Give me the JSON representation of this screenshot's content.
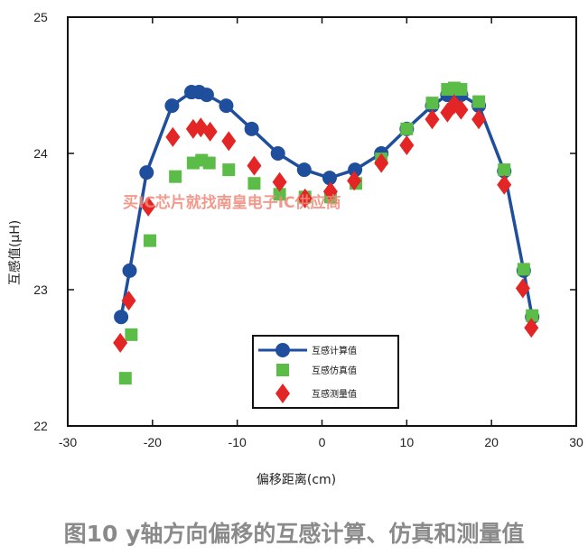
{
  "chart_data": {
    "type": "line",
    "xlabel": "偏移距离(cm)",
    "ylabel": "互感值(μH)",
    "xlim": [
      -30,
      30
    ],
    "ylim": [
      22,
      25
    ],
    "xticks": [
      -30,
      -20,
      -10,
      0,
      10,
      20,
      30
    ],
    "yticks": [
      22,
      23,
      24,
      25
    ],
    "grid": false,
    "legend_position": "bottom-center",
    "series": [
      {
        "name": "互感计算值",
        "style": "line-circle",
        "color": "#1f4e9c",
        "x": [
          -23.7,
          -22.7,
          -20.7,
          -17.7,
          -15.4,
          -14.5,
          -13.6,
          -11.3,
          -8.3,
          -5.2,
          -2.1,
          0.9,
          3.9,
          7.0,
          10.0,
          13.0,
          14.8,
          15.6,
          16.4,
          18.5,
          21.5,
          23.8,
          24.8
        ],
        "y": [
          22.8,
          23.14,
          23.86,
          24.35,
          24.45,
          24.45,
          24.43,
          24.35,
          24.18,
          24.0,
          23.88,
          23.82,
          23.88,
          24.0,
          24.18,
          24.35,
          24.43,
          24.45,
          24.43,
          24.35,
          23.87,
          23.14,
          22.8
        ]
      },
      {
        "name": "互感仿真值",
        "style": "square",
        "color": "#5bbd47",
        "x": [
          -23.2,
          -22.5,
          -20.3,
          -17.3,
          -15.2,
          -14.2,
          -13.3,
          -11.0,
          -8.0,
          -5.0,
          -2.0,
          1.0,
          4.0,
          7.0,
          10.0,
          13.0,
          14.8,
          15.6,
          16.4,
          18.5,
          21.5,
          23.8,
          24.8
        ],
        "y": [
          22.35,
          22.67,
          23.36,
          23.83,
          23.93,
          23.95,
          23.93,
          23.88,
          23.78,
          23.7,
          23.68,
          23.68,
          23.78,
          23.96,
          24.18,
          24.37,
          24.47,
          24.48,
          24.47,
          24.38,
          23.88,
          23.15,
          22.81
        ]
      },
      {
        "name": "互感测量值",
        "style": "diamond",
        "color": "#e32625",
        "x": [
          -23.8,
          -22.8,
          -20.5,
          -17.6,
          -15.2,
          -14.3,
          -13.2,
          -11.0,
          -8.0,
          -5.0,
          -2.0,
          1.0,
          3.8,
          7.0,
          10.0,
          13.0,
          14.8,
          15.6,
          16.4,
          18.5,
          21.5,
          23.7,
          24.7
        ],
        "y": [
          22.61,
          22.92,
          23.61,
          24.12,
          24.18,
          24.19,
          24.16,
          24.09,
          23.91,
          23.79,
          23.67,
          23.72,
          23.8,
          23.93,
          24.06,
          24.25,
          24.3,
          24.36,
          24.32,
          24.25,
          23.77,
          23.01,
          22.72
        ]
      }
    ]
  },
  "watermark": "买IC芯片就找南皇电子IC供应商",
  "caption": "图10 y轴方向偏移的互感计算、仿真和测量值"
}
